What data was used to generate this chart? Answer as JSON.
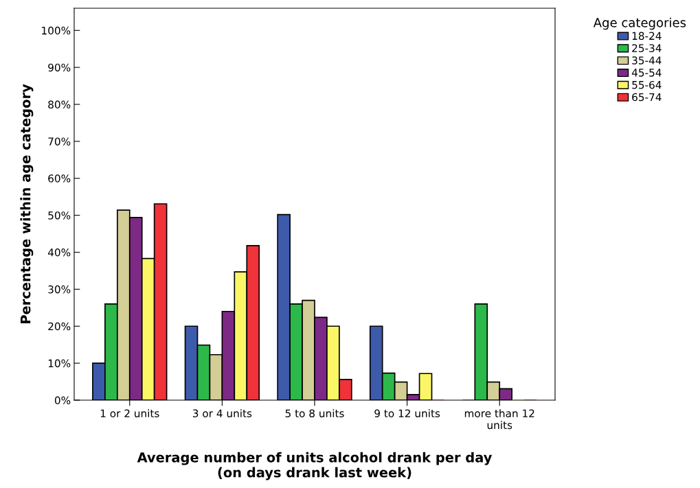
{
  "chart_data": {
    "type": "bar",
    "xlabel": "Average number of units alcohol drank per day\n(on days drank last week)",
    "ylabel": "Percentage within age category",
    "legend_title": "Age categories",
    "legend": "top right",
    "categories": [
      "1 or 2 units",
      "3 or 4 units",
      "5 to 8 units",
      "9 to 12 units",
      "more than 12\nunits"
    ],
    "series": [
      {
        "name": "18-24",
        "color": "#3e5aab",
        "values": [
          10,
          20,
          50.2,
          20,
          0
        ]
      },
      {
        "name": "25-34",
        "color": "#2db84a",
        "values": [
          26,
          14.9,
          26,
          7.3,
          26
        ]
      },
      {
        "name": "35-44",
        "color": "#d3cd96",
        "values": [
          51.4,
          12.3,
          27,
          4.9,
          4.9
        ]
      },
      {
        "name": "45-54",
        "color": "#7d2a86",
        "values": [
          49.4,
          24,
          22.4,
          1.5,
          3.1
        ]
      },
      {
        "name": "55-64",
        "color": "#fbf666",
        "values": [
          38.3,
          34.7,
          20,
          7.2,
          0
        ]
      },
      {
        "name": "65-74",
        "color": "#ef3338",
        "values": [
          53.1,
          41.8,
          5.6,
          0,
          0
        ]
      }
    ],
    "ylim": [
      0,
      106
    ],
    "yticks": [
      {
        "value": 0,
        "label": "0%"
      },
      {
        "value": 10,
        "label": "10%"
      },
      {
        "value": 20,
        "label": "20%"
      },
      {
        "value": 30,
        "label": "30%"
      },
      {
        "value": 40,
        "label": "40%"
      },
      {
        "value": 50,
        "label": "50%"
      },
      {
        "value": 60,
        "label": "60%"
      },
      {
        "value": 70,
        "label": "70%"
      },
      {
        "value": 80,
        "label": "80%"
      },
      {
        "value": 90,
        "label": "90%"
      },
      {
        "value": 100,
        "label": "100%"
      }
    ],
    "grid": false
  }
}
